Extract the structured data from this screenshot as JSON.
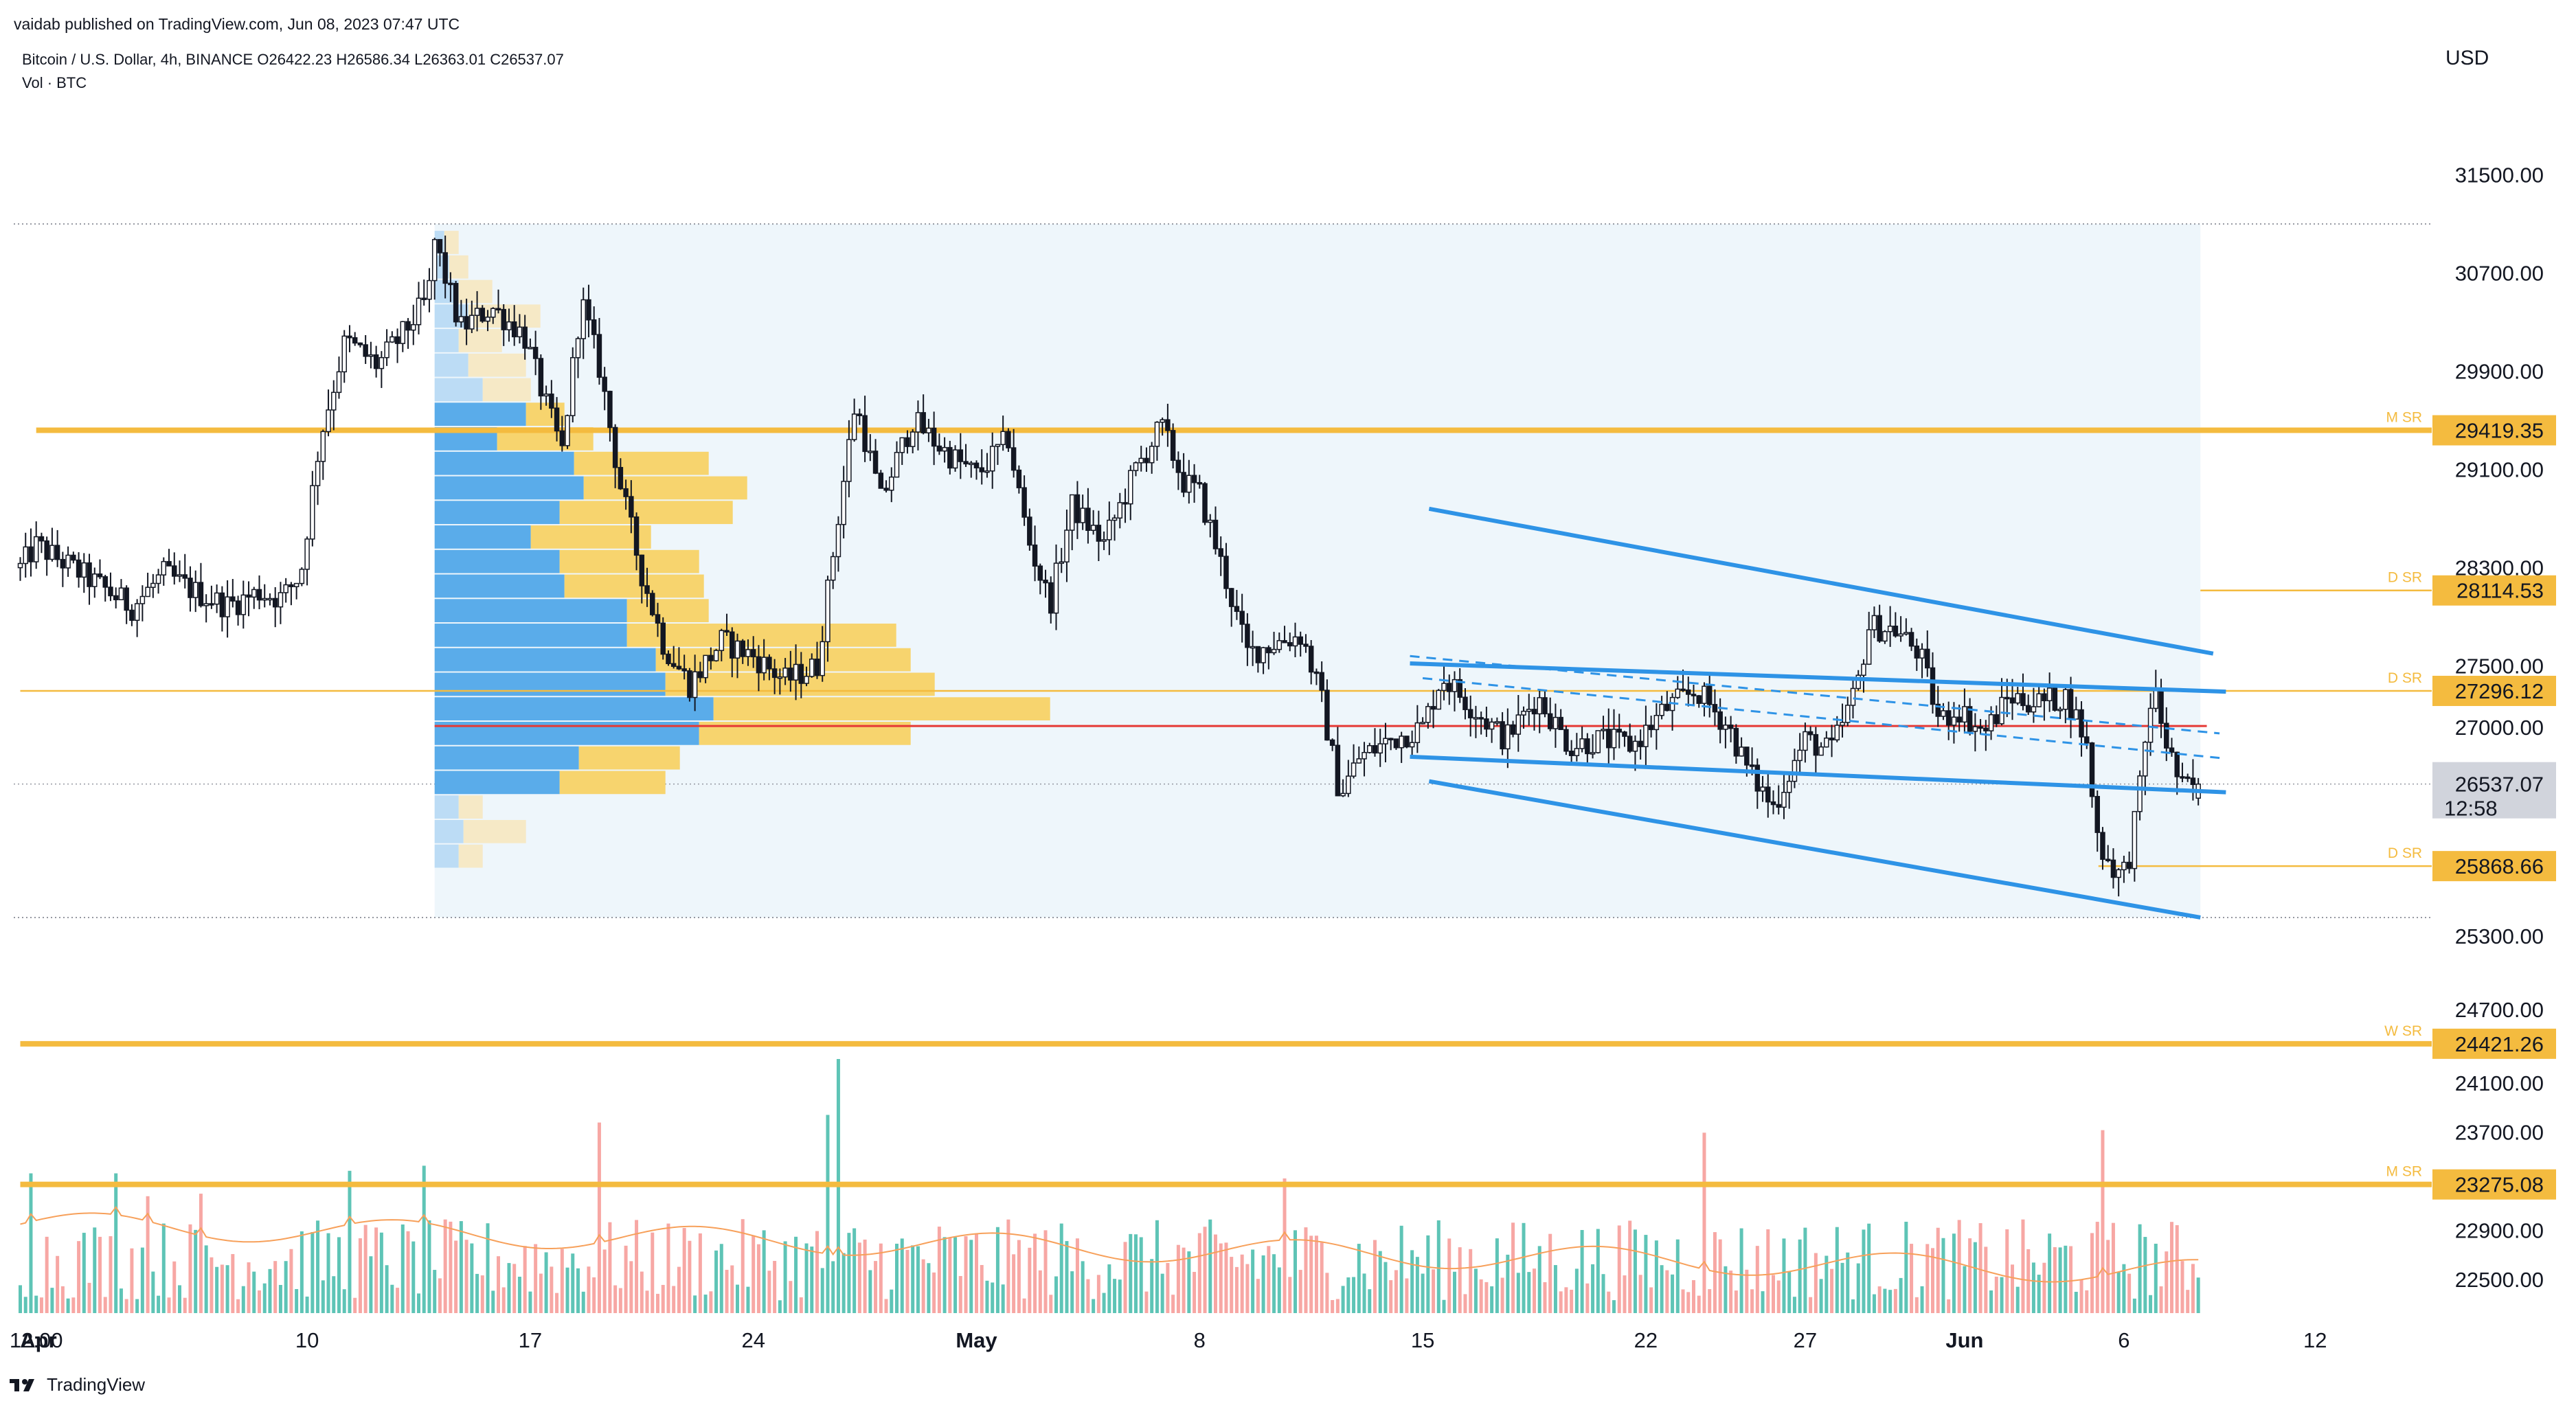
{
  "header": {
    "published": "vaidab published on TradingView.com, Jun 08, 2023 07:47 UTC",
    "symbol_line": "Bitcoin / U.S. Dollar, 4h, BINANCE  O26422.23  H26586.34  L26363.01  C26537.07",
    "volume_line": "Vol · BTC",
    "currency": "USD"
  },
  "footer": {
    "brand": "TradingView",
    "logo_icon": "tradingview-logo-icon"
  },
  "colors": {
    "up": "#5ec4b6",
    "down": "#f7a7a4",
    "candle": "#131722",
    "sr_line": "#f4bb3f",
    "channel": "#2e93e6",
    "poc": "#e53935",
    "vp_up": "#5aacea",
    "vp_up_light": "#bcdcf5",
    "vp_down": "#f7d46e",
    "vp_down_light": "#f6e9c6",
    "vp_bg": "#eef6fb",
    "ma": "#f7a05a",
    "grid_label": "#131722"
  },
  "chart_data": {
    "type": "candlestick",
    "title": "Bitcoin / U.S. Dollar, 4h, BINANCE",
    "ohlc_last": {
      "open": 26422.23,
      "high": 26586.34,
      "low": 26363.01,
      "close": 26537.07
    },
    "y_axis": {
      "unit": "USD",
      "ticks": [
        31500,
        30700,
        29900,
        29100,
        28300,
        27500,
        27000,
        25300,
        24700,
        24100,
        23700,
        22900,
        22500
      ],
      "range": [
        22200,
        31800
      ]
    },
    "x_axis": {
      "ticks": [
        {
          "label": "Apr",
          "day": 1,
          "bold": true
        },
        {
          "label": "12:00",
          "day": 1.5
        },
        {
          "label": "10",
          "day": 10
        },
        {
          "label": "17",
          "day": 17
        },
        {
          "label": "24",
          "day": 24
        },
        {
          "label": "May",
          "day": 31,
          "bold": true
        },
        {
          "label": "8",
          "day": 38
        },
        {
          "label": "15",
          "day": 45
        },
        {
          "label": "22",
          "day": 52
        },
        {
          "label": "27",
          "day": 57
        },
        {
          "label": "Jun",
          "day": 62,
          "bold": true
        },
        {
          "label": "6",
          "day": 67
        },
        {
          "label": "12",
          "day": 73
        }
      ]
    },
    "price_path": [
      [
        1,
        28300
      ],
      [
        1.5,
        28480
      ],
      [
        2.5,
        28320
      ],
      [
        3.5,
        28150
      ],
      [
        4.5,
        27980
      ],
      [
        5.5,
        28250
      ],
      [
        6.5,
        28100
      ],
      [
        7.5,
        27990
      ],
      [
        8.5,
        28100
      ],
      [
        9.2,
        28050
      ],
      [
        9.8,
        28250
      ],
      [
        10.4,
        29350
      ],
      [
        11.2,
        30150
      ],
      [
        12.2,
        29950
      ],
      [
        13.0,
        30200
      ],
      [
        13.8,
        30500
      ],
      [
        14.0,
        30960
      ],
      [
        14.8,
        30250
      ],
      [
        15.8,
        30420
      ],
      [
        16.8,
        30200
      ],
      [
        17.5,
        29620
      ],
      [
        18.0,
        29250
      ],
      [
        18.6,
        30480
      ],
      [
        19.2,
        29900
      ],
      [
        19.8,
        29000
      ],
      [
        20.5,
        28250
      ],
      [
        21.2,
        27660
      ],
      [
        22.0,
        27350
      ],
      [
        23.0,
        27700
      ],
      [
        24.0,
        27580
      ],
      [
        25.0,
        27380
      ],
      [
        26.0,
        27500
      ],
      [
        26.6,
        28600
      ],
      [
        27.2,
        29650
      ],
      [
        28.0,
        28850
      ],
      [
        29.0,
        29500
      ],
      [
        30.0,
        29250
      ],
      [
        31.0,
        29050
      ],
      [
        32.0,
        29350
      ],
      [
        32.6,
        28550
      ],
      [
        33.3,
        28000
      ],
      [
        34.0,
        28800
      ],
      [
        35.0,
        28500
      ],
      [
        36.0,
        29100
      ],
      [
        36.8,
        29450
      ],
      [
        37.5,
        29000
      ],
      [
        38.0,
        28900
      ],
      [
        38.6,
        28400
      ],
      [
        39.5,
        27600
      ],
      [
        40.5,
        27700
      ],
      [
        41.2,
        27750
      ],
      [
        41.8,
        27250
      ],
      [
        42.4,
        26450
      ],
      [
        43.0,
        26750
      ],
      [
        44.0,
        26900
      ],
      [
        45.0,
        27000
      ],
      [
        45.6,
        27420
      ],
      [
        46.6,
        27150
      ],
      [
        47.6,
        26900
      ],
      [
        48.6,
        27250
      ],
      [
        49.6,
        26850
      ],
      [
        50.6,
        26900
      ],
      [
        51.6,
        26850
      ],
      [
        52.6,
        27150
      ],
      [
        53.6,
        27300
      ],
      [
        54.6,
        27000
      ],
      [
        55.2,
        26650
      ],
      [
        56.0,
        26350
      ],
      [
        57.0,
        26900
      ],
      [
        57.8,
        26800
      ],
      [
        58.6,
        27300
      ],
      [
        59.0,
        27820
      ],
      [
        59.8,
        27800
      ],
      [
        60.6,
        27600
      ],
      [
        61.2,
        27050
      ],
      [
        61.8,
        27150
      ],
      [
        62.6,
        26950
      ],
      [
        63.4,
        27250
      ],
      [
        64.3,
        27200
      ],
      [
        65.2,
        27250
      ],
      [
        65.8,
        26900
      ],
      [
        66.2,
        26050
      ],
      [
        66.8,
        25800
      ],
      [
        67.1,
        25850
      ],
      [
        67.5,
        26500
      ],
      [
        67.9,
        27350
      ],
      [
        68.3,
        26900
      ],
      [
        68.8,
        26500
      ],
      [
        69.4,
        26537
      ]
    ],
    "volume_profile": [
      {
        "price_top": 31050,
        "price_bottom": 30850,
        "up": 0.02,
        "down": 0.03
      },
      {
        "price_top": 30850,
        "price_bottom": 30650,
        "up": 0.03,
        "down": 0.04
      },
      {
        "price_top": 30650,
        "price_bottom": 30450,
        "up": 0.05,
        "down": 0.07
      },
      {
        "price_top": 30450,
        "price_bottom": 30250,
        "up": 0.07,
        "down": 0.15
      },
      {
        "price_top": 30250,
        "price_bottom": 30050,
        "up": 0.05,
        "down": 0.09
      },
      {
        "price_top": 30050,
        "price_bottom": 29850,
        "up": 0.07,
        "down": 0.12
      },
      {
        "price_top": 29850,
        "price_bottom": 29650,
        "up": 0.1,
        "down": 0.1
      },
      {
        "price_top": 29650,
        "price_bottom": 29450,
        "up": 0.19,
        "down": 0.08
      },
      {
        "price_top": 29450,
        "price_bottom": 29250,
        "up": 0.13,
        "down": 0.2
      },
      {
        "price_top": 29250,
        "price_bottom": 29050,
        "up": 0.29,
        "down": 0.28
      },
      {
        "price_top": 29050,
        "price_bottom": 28850,
        "up": 0.31,
        "down": 0.34
      },
      {
        "price_top": 28850,
        "price_bottom": 28650,
        "up": 0.26,
        "down": 0.36
      },
      {
        "price_top": 28650,
        "price_bottom": 28450,
        "up": 0.2,
        "down": 0.25
      },
      {
        "price_top": 28450,
        "price_bottom": 28250,
        "up": 0.26,
        "down": 0.29
      },
      {
        "price_top": 28250,
        "price_bottom": 28050,
        "up": 0.27,
        "down": 0.29
      },
      {
        "price_top": 28050,
        "price_bottom": 27850,
        "up": 0.4,
        "down": 0.17
      },
      {
        "price_top": 27850,
        "price_bottom": 27650,
        "up": 0.4,
        "down": 0.56
      },
      {
        "price_top": 27650,
        "price_bottom": 27450,
        "up": 0.46,
        "down": 0.53
      },
      {
        "price_top": 27450,
        "price_bottom": 27250,
        "up": 0.48,
        "down": 0.56
      },
      {
        "price_top": 27250,
        "price_bottom": 27050,
        "up": 0.58,
        "down": 0.7
      },
      {
        "price_top": 27050,
        "price_bottom": 26850,
        "up": 0.55,
        "down": 0.44
      },
      {
        "price_top": 26850,
        "price_bottom": 26650,
        "up": 0.3,
        "down": 0.21
      },
      {
        "price_top": 26650,
        "price_bottom": 26450,
        "up": 0.26,
        "down": 0.22
      },
      {
        "price_top": 26450,
        "price_bottom": 26250,
        "up": 0.05,
        "down": 0.05
      },
      {
        "price_top": 26250,
        "price_bottom": 26050,
        "up": 0.06,
        "down": 0.13
      },
      {
        "price_top": 26050,
        "price_bottom": 25850,
        "up": 0.05,
        "down": 0.05
      }
    ],
    "volume_profile_range": {
      "day_start": 14,
      "day_end": 69.4,
      "price_top": 31100,
      "price_bottom": 25450
    },
    "poc_level": 27010,
    "levels": [
      {
        "value": 29419.35,
        "label": "29419.35",
        "tag": "M SR",
        "weight": "thick",
        "day_start": 1.5
      },
      {
        "value": 28114.53,
        "label": "28114.53",
        "tag": "D SR",
        "weight": "thin",
        "day_start": 69.4
      },
      {
        "value": 27296.12,
        "label": "27296.12",
        "tag": "D SR",
        "weight": "thin",
        "day_start": 1
      },
      {
        "value": 25868.66,
        "label": "25868.66",
        "tag": "D SR",
        "weight": "thin",
        "day_start": 66.2
      },
      {
        "value": 24421.26,
        "label": "24421.26",
        "tag": "W SR",
        "weight": "thick",
        "day_start": 1
      },
      {
        "value": 23275.08,
        "label": "23275.08",
        "tag": "M SR",
        "weight": "thick",
        "day_start": 1
      }
    ],
    "current_price": {
      "value": 26537.07,
      "label": "26537.07",
      "countdown": "12:58"
    },
    "channels": [
      {
        "name": "outer-upper",
        "from": [
          45.2,
          28780
        ],
        "to": [
          69.8,
          27600
        ],
        "style": "solid"
      },
      {
        "name": "outer-lower",
        "from": [
          45.2,
          26560
        ],
        "to": [
          69.4,
          25450
        ],
        "style": "solid"
      },
      {
        "name": "inner-upper",
        "from": [
          44.6,
          27520
        ],
        "to": [
          70.2,
          27290
        ],
        "style": "solid"
      },
      {
        "name": "inner-lower",
        "from": [
          44.6,
          26760
        ],
        "to": [
          70.2,
          26470
        ],
        "style": "solid"
      },
      {
        "name": "dashed-upper",
        "from": [
          44.6,
          27580
        ],
        "to": [
          70.0,
          26950
        ],
        "style": "dashed"
      },
      {
        "name": "dashed-lower",
        "from": [
          45.0,
          27400
        ],
        "to": [
          70.0,
          26750
        ],
        "style": "dashed"
      }
    ],
    "volume": {
      "note": "relative bar heights, 0-1 of volume pane height",
      "spikes": [
        {
          "day": 1.3,
          "height": 0.55,
          "color": "up"
        },
        {
          "day": 4.0,
          "height": 0.55,
          "color": "up"
        },
        {
          "day": 5.0,
          "height": 0.46,
          "color": "down"
        },
        {
          "day": 6.6,
          "height": 0.47,
          "color": "down"
        },
        {
          "day": 11.3,
          "height": 0.56,
          "color": "up"
        },
        {
          "day": 13.6,
          "height": 0.58,
          "color": "up"
        },
        {
          "day": 19.2,
          "height": 0.75,
          "color": "down"
        },
        {
          "day": 26.3,
          "height": 0.78,
          "color": "up"
        },
        {
          "day": 26.6,
          "height": 1.0,
          "color": "up"
        },
        {
          "day": 40.7,
          "height": 0.53,
          "color": "down"
        },
        {
          "day": 53.8,
          "height": 0.71,
          "color": "down"
        },
        {
          "day": 66.3,
          "height": 0.72,
          "color": "down"
        }
      ],
      "ma_start": 0.35,
      "ma_end": 0.16
    }
  }
}
